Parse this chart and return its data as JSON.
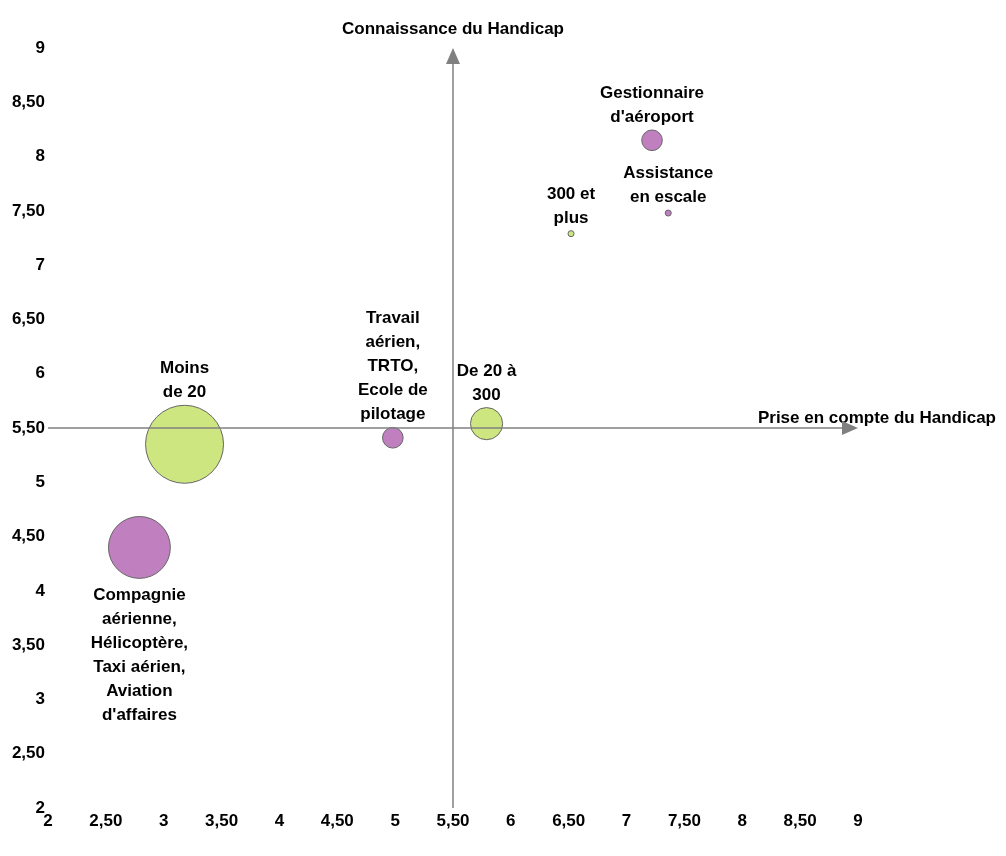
{
  "chart_data": {
    "type": "bubble",
    "series": [
      {
        "color": "#c080c0",
        "x": [
          2.79,
          4.98,
          7.22,
          7.36
        ],
        "values": [
          4.4,
          5.41,
          8.15,
          7.48
        ],
        "sizes": [
          0.63,
          0.07,
          0.07,
          0.006
        ]
      },
      {
        "color": "#cde680",
        "x": [
          3.18,
          5.79,
          6.52
        ],
        "values": [
          5.35,
          5.54,
          7.29
        ],
        "sizes": [
          1,
          0.17,
          0.006
        ]
      }
    ],
    "annotations": [
      {
        "text": "Compagnie aérienne, Hélicoptère, Taxi aérien, Aviation d'affaires",
        "x": 2.79,
        "y": 4.4
      },
      {
        "text": "Moins de 20",
        "x": 3.18,
        "y": 5.35
      },
      {
        "text": "Travail aérien, TRTO, Ecole de pilotage",
        "x": 4.98,
        "y": 5.41
      },
      {
        "text": "De 20 à 300",
        "x": 5.79,
        "y": 5.54
      },
      {
        "text": "300 et plus",
        "x": 6.52,
        "y": 7.29
      },
      {
        "text": "Gestionnaire d'aéroport",
        "x": 7.22,
        "y": 8.15
      },
      {
        "text": "Assistance en escale",
        "x": 7.36,
        "y": 7.48
      }
    ],
    "ref_lines": [
      {
        "axis": "x",
        "value": 5.5,
        "color": "#808080",
        "label": "Connaissance du Handicap"
      },
      {
        "axis": "y",
        "value": 5.5,
        "color": "#808080",
        "label": "Prise en compte du Handicap"
      }
    ],
    "xlim": [
      2,
      9
    ],
    "ylim": [
      2,
      9
    ],
    "xticks": [
      2,
      {
        "value": 2.5,
        "label": "2,50"
      },
      3,
      {
        "value": 3.5,
        "label": "3,50"
      },
      4,
      {
        "value": 4.5,
        "label": "4,50"
      },
      5,
      {
        "value": 5.5,
        "label": "5,50"
      },
      6,
      {
        "value": 6.5,
        "label": "6,50"
      },
      7,
      {
        "value": 7.5,
        "label": "7,50"
      },
      8,
      {
        "value": 8.5,
        "label": "8,50"
      },
      9
    ],
    "yticks": [
      2,
      {
        "value": 2.5,
        "label": "2,50"
      },
      3,
      {
        "value": 3.5,
        "label": "3,50"
      },
      4,
      {
        "value": 4.5,
        "label": "4,50"
      },
      5,
      {
        "value": 5.5,
        "label": "5,50"
      },
      6,
      {
        "value": 6.5,
        "label": "6,50"
      },
      7,
      {
        "value": 7.5,
        "label": "7,50"
      },
      8,
      {
        "value": 8.5,
        "label": "8,50"
      },
      9
    ],
    "grid": false,
    "legend": false
  }
}
